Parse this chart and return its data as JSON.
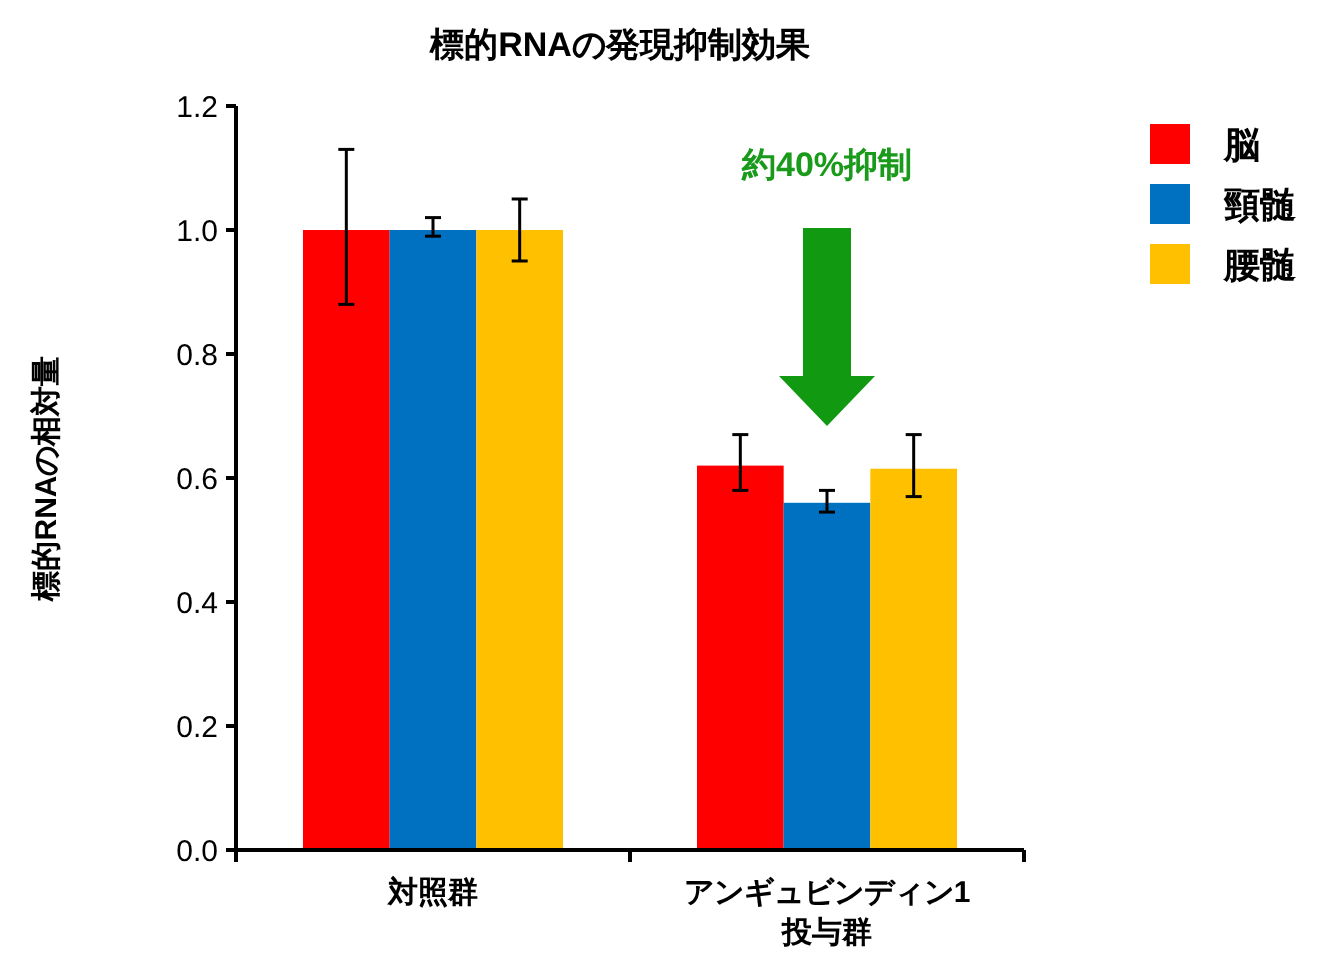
{
  "chart_data": {
    "type": "bar",
    "title": "標的RNAの発現抑制効果",
    "ylabel": "標的RNAの相対量",
    "categories": [
      "対照群",
      "アンギュビンディン1\n投与群"
    ],
    "series": [
      {
        "name": "脳",
        "color": "#ff0000",
        "values": [
          1.0,
          0.62
        ],
        "errors": [
          [
            0.88,
            1.13
          ],
          [
            0.58,
            0.67
          ]
        ]
      },
      {
        "name": "頸髄",
        "color": "#0070c0",
        "values": [
          1.0,
          0.56
        ],
        "errors": [
          [
            0.99,
            1.02
          ],
          [
            0.545,
            0.58
          ]
        ]
      },
      {
        "name": "腰髄",
        "color": "#ffc000",
        "values": [
          1.0,
          0.615
        ],
        "errors": [
          [
            0.95,
            1.05
          ],
          [
            0.57,
            0.67
          ]
        ]
      }
    ],
    "ylim": [
      0,
      1.2
    ],
    "yticks": [
      {
        "value": 0,
        "label": "0.0"
      },
      {
        "value": 0.2,
        "label": "0.2"
      },
      {
        "value": 0.4,
        "label": "0.4"
      },
      {
        "value": 0.6,
        "label": "0.6"
      },
      {
        "value": 0.8,
        "label": "0.8"
      },
      {
        "value": 1,
        "label": "1.0"
      },
      {
        "value": 1.2,
        "label": "1.2"
      }
    ],
    "grid": false,
    "legend": "top right",
    "annotations": [
      "約40%抑制"
    ]
  }
}
